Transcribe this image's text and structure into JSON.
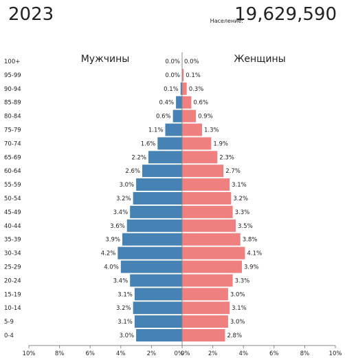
{
  "header": {
    "year": "2023",
    "population_label": "Население:",
    "population_value": "19,629,590"
  },
  "colors": {
    "male": "#4682b4",
    "female": "#f08080",
    "axis": "#888888",
    "text": "#222222"
  },
  "chart_data": {
    "type": "bar",
    "orientation": "horizontal-pyramid",
    "categories": [
      "100+",
      "95-99",
      "90-94",
      "85-89",
      "80-84",
      "75-79",
      "70-74",
      "65-69",
      "60-64",
      "55-59",
      "50-54",
      "45-49",
      "40-44",
      "35-39",
      "30-34",
      "25-29",
      "20-24",
      "15-19",
      "10-14",
      "5-9",
      "0-4"
    ],
    "series": [
      {
        "name": "Мужчины",
        "side": "left",
        "values": [
          0.0,
          0.0,
          0.1,
          0.4,
          0.6,
          1.1,
          1.6,
          2.2,
          2.6,
          3.0,
          3.2,
          3.4,
          3.6,
          3.9,
          4.2,
          4.0,
          3.4,
          3.1,
          3.2,
          3.1,
          3.0
        ]
      },
      {
        "name": "Женщины",
        "side": "right",
        "values": [
          0.0,
          0.1,
          0.3,
          0.6,
          0.9,
          1.3,
          1.9,
          2.3,
          2.7,
          3.1,
          3.2,
          3.3,
          3.5,
          3.8,
          4.1,
          3.9,
          3.3,
          3.0,
          3.1,
          3.0,
          2.8
        ]
      }
    ],
    "value_unit": "%",
    "xlim": [
      0,
      10
    ],
    "x_ticks": [
      "10%",
      "8%",
      "6%",
      "4%",
      "2%",
      "0%",
      "0%",
      "2%",
      "4%",
      "6%",
      "8%",
      "10%"
    ],
    "grid": false,
    "legend": "top, inside each half"
  }
}
